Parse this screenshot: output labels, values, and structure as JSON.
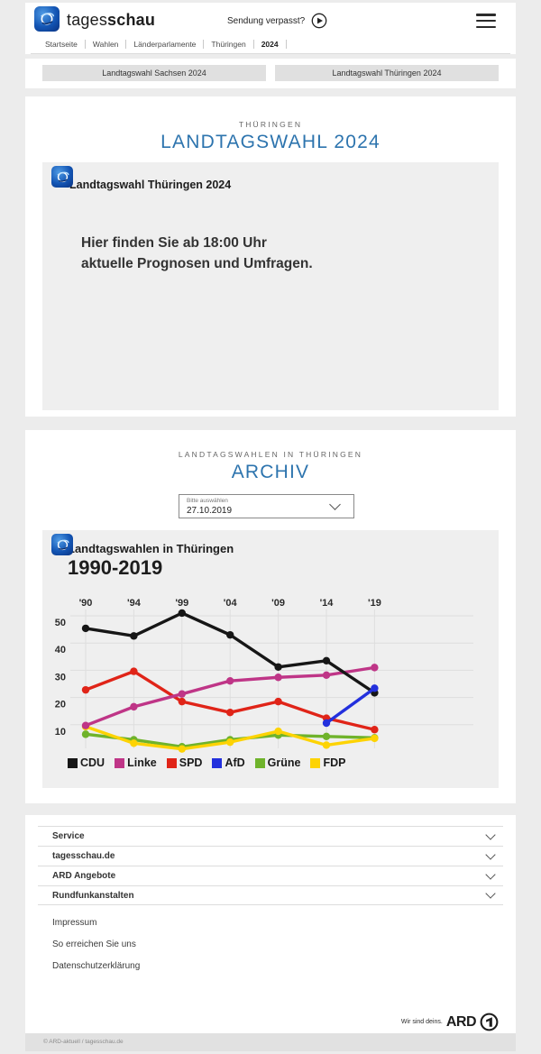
{
  "header": {
    "brand_regular": "tages",
    "brand_bold": "schau",
    "sendung_verpasst": "Sendung verpasst?",
    "breadcrumb": [
      {
        "label": "Startseite",
        "active": false
      },
      {
        "label": "Wahlen",
        "active": false
      },
      {
        "label": "Länderparlamente",
        "active": false
      },
      {
        "label": "Thüringen",
        "active": false
      },
      {
        "label": "2024",
        "active": true
      }
    ]
  },
  "quick_links": [
    {
      "label": "Landtagswahl Sachsen 2024"
    },
    {
      "label": "Landtagswahl Thüringen 2024"
    }
  ],
  "election_card": {
    "kicker": "THÜRINGEN",
    "title": "LANDTAGSWAHL 2024",
    "widget": {
      "title": "Landtagswahl Thüringen 2024",
      "message_line1": "Hier finden Sie ab 18:00 Uhr",
      "message_line2": "aktuelle Prognosen und Umfragen."
    }
  },
  "archive_card": {
    "kicker": "LANDTAGSWAHLEN IN THÜRINGEN",
    "title": "ARCHIV",
    "dropdown": {
      "label": "Bitte auswählen",
      "value": "27.10.2019"
    }
  },
  "chart_data": {
    "type": "line",
    "title": "Landtagswahlen in Thüringen",
    "subtitle": "1990-2019",
    "x": [
      1990,
      1994,
      1999,
      2004,
      2009,
      2014,
      2019
    ],
    "x_tick_labels": [
      "'90",
      "'94",
      "'99",
      "'04",
      "'09",
      "'14",
      "'19"
    ],
    "y_ticks": [
      10,
      20,
      30,
      40,
      50
    ],
    "ylim": [
      0,
      55
    ],
    "grid": true,
    "legend_position": "bottom",
    "series": [
      {
        "name": "CDU",
        "color": "#161616",
        "values": [
          45.4,
          42.6,
          51.0,
          43.0,
          31.2,
          33.5,
          21.7
        ]
      },
      {
        "name": "Linke",
        "color": "#bf3587",
        "values": [
          9.7,
          16.6,
          21.3,
          26.1,
          27.4,
          28.2,
          31.0
        ]
      },
      {
        "name": "SPD",
        "color": "#e02418",
        "values": [
          22.8,
          29.6,
          18.5,
          14.5,
          18.5,
          12.4,
          8.2
        ]
      },
      {
        "name": "AfD",
        "color": "#2330dd",
        "values": [
          null,
          null,
          null,
          null,
          null,
          10.6,
          23.4
        ]
      },
      {
        "name": "Grüne",
        "color": "#6fb32b",
        "values": [
          6.5,
          4.5,
          1.9,
          4.5,
          6.2,
          5.7,
          5.2
        ]
      },
      {
        "name": "FDP",
        "color": "#fdd303",
        "values": [
          9.3,
          3.2,
          1.1,
          3.6,
          7.6,
          2.5,
          5.0
        ]
      }
    ]
  },
  "footer": {
    "accordions": [
      {
        "label": "Service"
      },
      {
        "label": "tagesschau.de"
      },
      {
        "label": "ARD Angebote"
      },
      {
        "label": "Rundfunkanstalten"
      }
    ],
    "links": [
      {
        "label": "Impressum"
      },
      {
        "label": "So erreichen Sie uns"
      },
      {
        "label": "Datenschutzerklärung"
      }
    ],
    "ard_claim": "Wir sind deins.",
    "ard_wordmark": "ARD",
    "copyright": "© ARD-aktuell / tagesschau.de"
  },
  "colors": {
    "accent_blue": "#2d74ae",
    "page_bg": "#ececec",
    "panel_bg": "#efefef",
    "button_bg": "#e0e0e0"
  }
}
